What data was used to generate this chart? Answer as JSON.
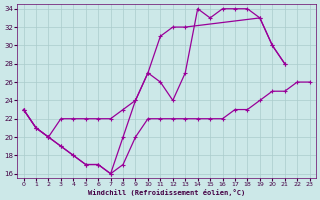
{
  "xlabel": "Windchill (Refroidissement éolien,°C)",
  "background_color": "#cce8e8",
  "grid_color": "#aacccc",
  "line_color": "#990099",
  "xlim": [
    -0.5,
    23.5
  ],
  "ylim": [
    15.5,
    34.5
  ],
  "xticks": [
    0,
    1,
    2,
    3,
    4,
    5,
    6,
    7,
    8,
    9,
    10,
    11,
    12,
    13,
    14,
    15,
    16,
    17,
    18,
    19,
    20,
    21,
    22,
    23
  ],
  "yticks": [
    16,
    18,
    20,
    22,
    24,
    26,
    28,
    30,
    32,
    34
  ],
  "series1_x": [
    0,
    1,
    2,
    3,
    4,
    5,
    6,
    7,
    8,
    9,
    10,
    11,
    12,
    13,
    14,
    15,
    16,
    17,
    18,
    19,
    20,
    21,
    22,
    23
  ],
  "series1_y": [
    23,
    21,
    20,
    19,
    18,
    17,
    17,
    16,
    17,
    20,
    22,
    22,
    22,
    22,
    22,
    22,
    22,
    23,
    23,
    24,
    25,
    25,
    26,
    26
  ],
  "series2_x": [
    0,
    1,
    2,
    3,
    4,
    5,
    6,
    7,
    8,
    9,
    10,
    11,
    12,
    13,
    14,
    15,
    16,
    17,
    18,
    19,
    20,
    21,
    22,
    23
  ],
  "series2_y": [
    23,
    21,
    20,
    19,
    18,
    17,
    17,
    16,
    20,
    24,
    27,
    26,
    24,
    27,
    34,
    33,
    34,
    34,
    34,
    33,
    30,
    28,
    null,
    null
  ],
  "series3_x": [
    0,
    1,
    2,
    3,
    4,
    5,
    6,
    7,
    8,
    9,
    10,
    11,
    12,
    13,
    14,
    15,
    16,
    17,
    18,
    19,
    20,
    21,
    22,
    23
  ],
  "series3_y": [
    23,
    21,
    20,
    22,
    22,
    22,
    22,
    22,
    23,
    24,
    27,
    31,
    32,
    32,
    null,
    null,
    null,
    null,
    null,
    33,
    30,
    28,
    null,
    null
  ]
}
